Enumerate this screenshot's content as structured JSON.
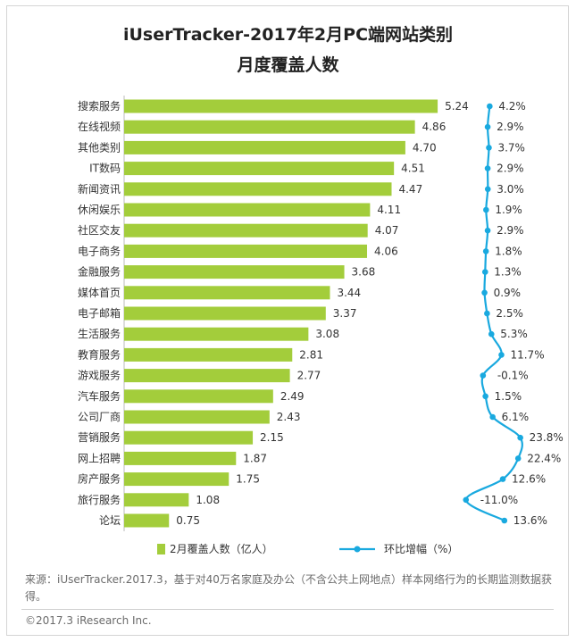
{
  "title_line1": "iUserTracker-2017年2月PC端网站类别",
  "title_line2": "月度覆盖人数",
  "source_text": "来源：iUserTracker.2017.3，基于对40万名家庭及办公（不含公共上网地点）样本网络行为的长期监测数据获得。",
  "copyright": "©2017.3 iResearch Inc.",
  "colors": {
    "bar": "#a3cd3b",
    "line": "#19a9df",
    "text": "#333333"
  },
  "chart_data": {
    "type": "bar",
    "orientation": "horizontal",
    "categories": [
      "搜索服务",
      "在线视频",
      "其他类别",
      "IT数码",
      "新闻资讯",
      "休闲娱乐",
      "社区交友",
      "电子商务",
      "金融服务",
      "媒体首页",
      "电子邮箱",
      "生活服务",
      "教育服务",
      "游戏服务",
      "汽车服务",
      "公司厂商",
      "营销服务",
      "网上招聘",
      "房产服务",
      "旅行服务",
      "论坛"
    ],
    "series": [
      {
        "name": "2月覆盖人数（亿人）",
        "type": "bar",
        "values": [
          5.24,
          4.86,
          4.7,
          4.51,
          4.47,
          4.11,
          4.07,
          4.06,
          3.68,
          3.44,
          3.37,
          3.08,
          2.81,
          2.77,
          2.49,
          2.43,
          2.15,
          1.87,
          1.75,
          1.08,
          0.75
        ],
        "labels": [
          "5.24",
          "4.86",
          "4.70",
          "4.51",
          "4.47",
          "4.11",
          "4.07",
          "4.06",
          "3.68",
          "3.44",
          "3.37",
          "3.08",
          "2.81",
          "2.77",
          "2.49",
          "2.43",
          "2.15",
          "1.87",
          "1.75",
          "1.08",
          "0.75"
        ]
      },
      {
        "name": "环比增幅（%）",
        "type": "line",
        "values": [
          4.2,
          2.9,
          3.7,
          2.9,
          3.0,
          1.9,
          2.9,
          1.8,
          1.3,
          0.9,
          2.5,
          5.3,
          11.7,
          -0.1,
          1.5,
          6.1,
          23.8,
          22.4,
          12.6,
          -11.0,
          13.6
        ],
        "labels": [
          "4.2%",
          "2.9%",
          "3.7%",
          "2.9%",
          "3.0%",
          "1.9%",
          "2.9%",
          "1.8%",
          "1.3%",
          "0.9%",
          "2.5%",
          "5.3%",
          "11.7%",
          "-0.1%",
          "1.5%",
          "6.1%",
          "23.8%",
          "22.4%",
          "12.6%",
          "-11.0%",
          "13.6%"
        ]
      }
    ],
    "legend": "bottom",
    "grid": false
  }
}
